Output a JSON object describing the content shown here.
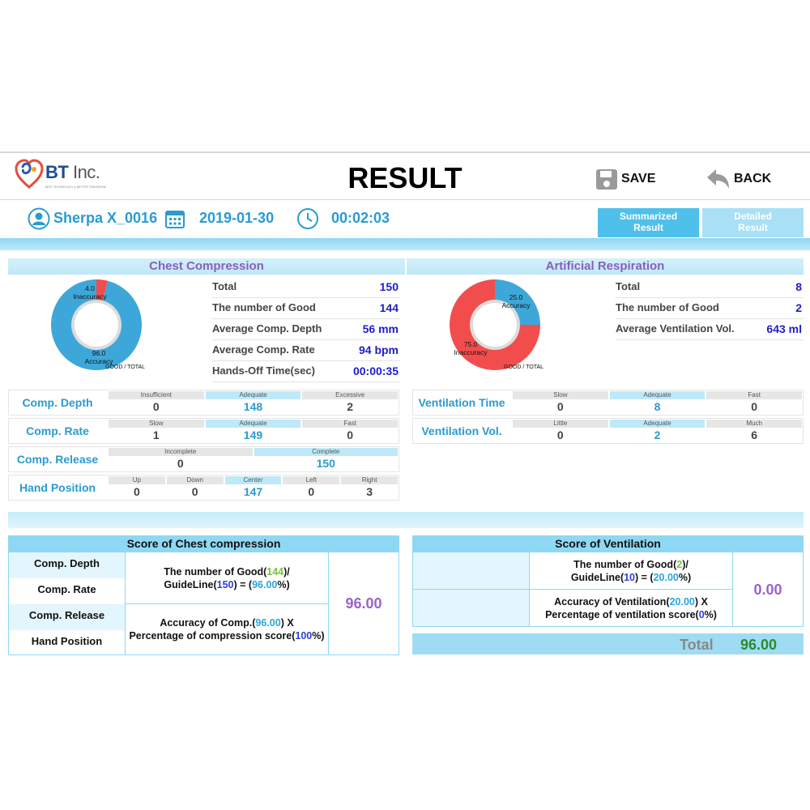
{
  "header": {
    "logo_text": "BT",
    "logo_inc": "Inc.",
    "logo_tagline": "BEST TECHNOLOGY & BETTER TOMORROW",
    "title": "RESULT",
    "save_label": "SAVE",
    "back_label": "BACK"
  },
  "info": {
    "user": "Sherpa X_0016",
    "date": "2019-01-30",
    "time": "00:02:03"
  },
  "tabs": {
    "summary_line1": "Summarized",
    "summary_line2": "Result",
    "detail_line1": "Detailed",
    "detail_line2": "Result"
  },
  "colors": {
    "accent": "#2a9bd0",
    "good": "#3ea7d9",
    "bad": "#f24d4d",
    "score": "#9a63c7"
  },
  "chest": {
    "title": "Chest Compression",
    "donut": {
      "accuracy": 96.0,
      "inaccuracy": 4.0,
      "acc_value": "96.0",
      "acc_label": "Accuracy",
      "inacc_value": "4.0",
      "inacc_label": "Inaccuracy",
      "foot": "GOOD / TOTAL"
    },
    "stats": [
      {
        "k": "Total",
        "v": "150"
      },
      {
        "k": "The number of Good",
        "v": "144"
      },
      {
        "k": "Average Comp. Depth",
        "v": "56 mm"
      },
      {
        "k": "Average Comp. Rate",
        "v": "94 bpm"
      },
      {
        "k": "Hands-Off Time(sec)",
        "v": "00:00:35"
      }
    ],
    "rows": [
      {
        "name": "Comp. Depth",
        "cells": [
          {
            "h": "Insufficient",
            "n": "0"
          },
          {
            "h": "Adequate",
            "n": "148"
          },
          {
            "h": "Excessive",
            "n": "2"
          }
        ]
      },
      {
        "name": "Comp. Rate",
        "cells": [
          {
            "h": "Slow",
            "n": "1"
          },
          {
            "h": "Adequate",
            "n": "149"
          },
          {
            "h": "Fast",
            "n": "0"
          }
        ]
      },
      {
        "name": "Comp. Release",
        "cells": [
          {
            "h": "Incomplete",
            "n": "0"
          },
          {
            "h": "Complete",
            "n": "150"
          }
        ]
      },
      {
        "name": "Hand Position",
        "cells": [
          {
            "h": "Up",
            "n": "0"
          },
          {
            "h": "Down",
            "n": "0"
          },
          {
            "h": "Center",
            "n": "147"
          },
          {
            "h": "Left",
            "n": "0"
          },
          {
            "h": "Right",
            "n": "3"
          }
        ]
      }
    ]
  },
  "resp": {
    "title": "Artificial Respiration",
    "donut": {
      "accuracy": 25.0,
      "inaccuracy": 75.0,
      "acc_value": "25.0",
      "acc_label": "Accuracy",
      "inacc_value": "75.0",
      "inacc_label": "Inaccuracy",
      "foot": "GOOD / TOTAL"
    },
    "stats": [
      {
        "k": "Total",
        "v": "8"
      },
      {
        "k": "The number of Good",
        "v": "2"
      },
      {
        "k": "Average Ventilation Vol.",
        "v": "643 ml"
      }
    ],
    "rows": [
      {
        "name": "Ventilation Time",
        "cells": [
          {
            "h": "Slow",
            "n": "0"
          },
          {
            "h": "Adequate",
            "n": "8"
          },
          {
            "h": "Fast",
            "n": "0"
          }
        ]
      },
      {
        "name": "Ventilation Vol.",
        "cells": [
          {
            "h": "Little",
            "n": "0"
          },
          {
            "h": "Adequate",
            "n": "2"
          },
          {
            "h": "Much",
            "n": "6"
          }
        ]
      }
    ]
  },
  "score_chest": {
    "title": "Score of Chest compression",
    "labels": [
      "Comp. Depth",
      "Comp. Rate",
      "Comp. Release",
      "Hand Position"
    ],
    "f1_a": "The number of Good(",
    "f1_good": "144",
    "f1_b": ")/",
    "f1_c": "GuideLine(",
    "f1_guide": "150",
    "f1_d": ") = (",
    "f1_pct": "96.00",
    "f1_e": "%)",
    "f2_a": "Accuracy of Comp.(",
    "f2_acc": "96.00",
    "f2_b": ") X",
    "f2_c": "Percentage of compression score(",
    "f2_pct": "100",
    "f2_d": "%)",
    "score": "96.00"
  },
  "score_vent": {
    "title": "Score of Ventilation",
    "f1_a": "The number of Good(",
    "f1_good": "2",
    "f1_b": ")/",
    "f1_c": "GuideLine(",
    "f1_guide": "10",
    "f1_d": ") = (",
    "f1_pct": "20.00",
    "f1_e": "%)",
    "f2_a": "Accuracy of Ventilation(",
    "f2_acc": "20.00",
    "f2_b": ") X",
    "f2_c": "Percentage of ventilation score(",
    "f2_pct": "0",
    "f2_d": "%)",
    "score": "0.00"
  },
  "total": {
    "label": "Total",
    "value": "96.00"
  }
}
